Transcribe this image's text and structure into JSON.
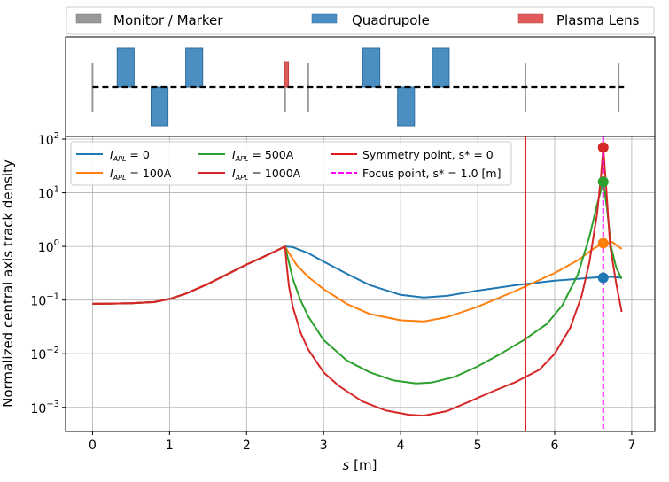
{
  "legend_top": [
    {
      "label": "Monitor / Marker",
      "color": "#999999"
    },
    {
      "label": "Quadrupole",
      "color": "#4a8ec2"
    },
    {
      "label": "Plasma Lens",
      "color": "#e05a5a"
    }
  ],
  "lattice": {
    "beamline_range": [
      0,
      6.9
    ],
    "monitors": [
      0.0,
      2.5,
      2.8,
      5.62,
      6.83
    ],
    "quadrupoles": [
      {
        "center": 0.43,
        "width": 0.22,
        "polarity": 1
      },
      {
        "center": 0.87,
        "width": 0.22,
        "polarity": -1
      },
      {
        "center": 1.32,
        "width": 0.22,
        "polarity": 1
      },
      {
        "center": 3.62,
        "width": 0.22,
        "polarity": 1
      },
      {
        "center": 4.07,
        "width": 0.22,
        "polarity": -1
      },
      {
        "center": 4.52,
        "width": 0.22,
        "polarity": 1
      }
    ],
    "plasma_lens": {
      "center": 2.52,
      "width": 0.05
    }
  },
  "chart_data": {
    "type": "line",
    "ylabel": "Normalized central axis track density",
    "xlabel_italic": "s",
    "xlabel_unit": " [m]",
    "xlim": [
      -0.35,
      7.3
    ],
    "ylim_log10": [
      -3.45,
      2.05
    ],
    "yscale": "log",
    "grid": true,
    "xticks": [
      0,
      1,
      2,
      3,
      4,
      5,
      6,
      7
    ],
    "xtick_labels": [
      "0",
      "1",
      "2",
      "3",
      "4",
      "5",
      "6",
      "7"
    ],
    "yticks_exp": [
      -3,
      -2,
      -1,
      0,
      1,
      2
    ],
    "ytick_base": "10",
    "ytick_exp_labels": [
      "−3",
      "−2",
      "−1",
      "0",
      "1",
      "2"
    ],
    "legend": [
      {
        "key": "i0",
        "pre": "I",
        "sub": "APL",
        "post": " = 0",
        "color": "#1f77b4"
      },
      {
        "key": "i100",
        "pre": "I",
        "sub": "APL",
        "post": " = 100A",
        "color": "#ff7f0e"
      },
      {
        "key": "i500",
        "pre": "I",
        "sub": "APL",
        "post": " = 500A",
        "color": "#2ca02c"
      },
      {
        "key": "i1000",
        "pre": "I",
        "sub": "APL",
        "post": " = 1000A",
        "color": "#d62728"
      },
      {
        "key": "sym",
        "text": "Symmetry point, s* = 0",
        "color": "#e31a1c"
      },
      {
        "key": "focus",
        "text": "Focus point, s* = 1.0 [m]",
        "color": "#ff00ff"
      }
    ],
    "symmetry_point_s": 5.62,
    "focus_point_s": 6.63,
    "common_s": [
      0.0,
      0.5,
      0.8,
      1.0,
      1.2,
      1.5,
      1.8,
      2.0,
      2.2,
      2.4,
      2.5
    ],
    "common_y": [
      0.085,
      0.087,
      0.092,
      0.105,
      0.13,
      0.2,
      0.33,
      0.46,
      0.62,
      0.85,
      1.0
    ],
    "series": [
      {
        "name": "I_APL = 0",
        "color": "#1f77b4",
        "s": [
          2.5,
          2.6,
          2.8,
          3.0,
          3.3,
          3.6,
          4.0,
          4.3,
          4.6,
          5.0,
          5.5,
          6.0,
          6.4,
          6.63,
          6.75,
          6.87
        ],
        "y": [
          1.0,
          0.97,
          0.75,
          0.52,
          0.31,
          0.19,
          0.125,
          0.112,
          0.12,
          0.15,
          0.19,
          0.23,
          0.255,
          0.27,
          0.27,
          0.26
        ],
        "marker": 0.26
      },
      {
        "name": "I_APL = 100A",
        "color": "#ff7f0e",
        "s": [
          2.5,
          2.55,
          2.65,
          2.8,
          3.0,
          3.3,
          3.6,
          4.0,
          4.3,
          4.6,
          5.0,
          5.5,
          6.0,
          6.3,
          6.5,
          6.63,
          6.75,
          6.87
        ],
        "y": [
          1.0,
          0.75,
          0.45,
          0.27,
          0.16,
          0.085,
          0.055,
          0.042,
          0.04,
          0.048,
          0.075,
          0.15,
          0.32,
          0.55,
          0.9,
          1.15,
          1.2,
          0.9
        ],
        "marker": 1.15
      },
      {
        "name": "I_APL = 500A",
        "color": "#2ca02c",
        "s": [
          2.5,
          2.55,
          2.6,
          2.7,
          2.8,
          3.0,
          3.3,
          3.6,
          3.9,
          4.2,
          4.4,
          4.7,
          5.0,
          5.3,
          5.6,
          5.9,
          6.1,
          6.3,
          6.45,
          6.55,
          6.63,
          6.68,
          6.73,
          6.8,
          6.87
        ],
        "y": [
          1.0,
          0.5,
          0.25,
          0.1,
          0.05,
          0.018,
          0.0075,
          0.0045,
          0.0032,
          0.0028,
          0.0029,
          0.0037,
          0.0058,
          0.01,
          0.018,
          0.036,
          0.08,
          0.3,
          1.5,
          6.0,
          16,
          5.0,
          1.0,
          0.4,
          0.25
        ],
        "marker": 16
      },
      {
        "name": "I_APL = 1000A",
        "color": "#d62728",
        "s": [
          2.5,
          2.52,
          2.55,
          2.6,
          2.7,
          2.8,
          3.0,
          3.2,
          3.5,
          3.8,
          4.1,
          4.3,
          4.6,
          4.9,
          5.2,
          5.5,
          5.8,
          6.0,
          6.2,
          6.35,
          6.45,
          6.55,
          6.6,
          6.63,
          6.67,
          6.72,
          6.8,
          6.87
        ],
        "y": [
          1.0,
          0.45,
          0.18,
          0.075,
          0.025,
          0.012,
          0.0045,
          0.0025,
          0.0013,
          0.00088,
          0.00073,
          0.0007,
          0.00085,
          0.0013,
          0.002,
          0.003,
          0.005,
          0.01,
          0.03,
          0.12,
          0.5,
          4.0,
          20,
          70,
          12,
          1.0,
          0.2,
          0.06
        ],
        "marker": 70
      }
    ]
  }
}
